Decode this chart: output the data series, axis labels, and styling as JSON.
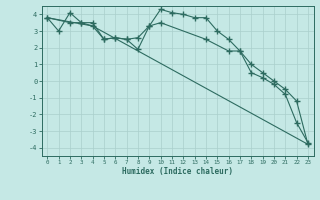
{
  "xlabel": "Humidex (Indice chaleur)",
  "background_color": "#c5e8e5",
  "grid_color": "#aacfcc",
  "line_color": "#2d6b60",
  "xlim": [
    -0.5,
    23.5
  ],
  "ylim": [
    -4.5,
    4.5
  ],
  "yticks": [
    -4,
    -3,
    -2,
    -1,
    0,
    1,
    2,
    3,
    4
  ],
  "xticks": [
    0,
    1,
    2,
    3,
    4,
    5,
    6,
    7,
    8,
    9,
    10,
    11,
    12,
    13,
    14,
    15,
    16,
    17,
    18,
    19,
    20,
    21,
    22,
    23
  ],
  "line1_x": [
    0,
    1,
    2,
    3,
    4,
    5,
    6,
    7,
    8,
    9,
    10,
    11,
    12,
    13,
    14,
    15,
    16,
    17,
    18,
    19,
    20,
    21,
    22,
    23
  ],
  "line1_y": [
    3.8,
    3.0,
    4.1,
    3.5,
    3.5,
    2.5,
    2.6,
    2.5,
    1.9,
    3.3,
    4.3,
    4.1,
    4.0,
    3.8,
    3.8,
    3.0,
    2.5,
    1.8,
    1.0,
    0.5,
    0.0,
    -0.5,
    -1.2,
    -3.8
  ],
  "line2_x": [
    0,
    2,
    3,
    4,
    5,
    6,
    7,
    8,
    9,
    10,
    14,
    16,
    17,
    18,
    19,
    20,
    21,
    22,
    23
  ],
  "line2_y": [
    3.8,
    3.5,
    3.5,
    3.3,
    2.5,
    2.6,
    2.5,
    2.6,
    3.3,
    3.5,
    2.5,
    1.8,
    1.8,
    0.5,
    0.2,
    -0.2,
    -0.8,
    -2.5,
    -3.7
  ],
  "line3_x": [
    0,
    4,
    23
  ],
  "line3_y": [
    3.8,
    3.3,
    -3.8
  ]
}
